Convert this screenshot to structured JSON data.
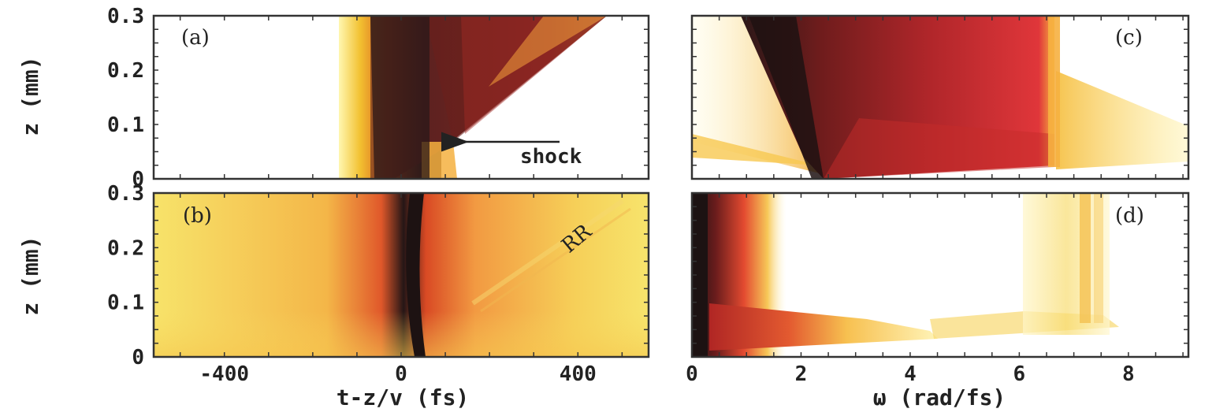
{
  "chart_data": [
    {
      "type": "heatmap",
      "panel": "(a)",
      "ylabel": "z (mm)",
      "xlabel": "",
      "xlim": [
        -560,
        560
      ],
      "ylim": [
        0,
        0.3
      ],
      "yticks": [
        "0",
        "0.1",
        "0.2",
        "0.3"
      ],
      "annotation": "shock",
      "annotation_point": {
        "x": 95,
        "z": 0.065
      }
    },
    {
      "type": "heatmap",
      "panel": "(b)",
      "ylabel": "z (mm)",
      "xlabel": "t-z/v (fs)",
      "xlim": [
        -560,
        560
      ],
      "ylim": [
        0,
        0.3
      ],
      "xticks": [
        "-400",
        "0",
        "400"
      ],
      "yticks": [
        "0",
        "0.1",
        "0.2",
        "0.3"
      ],
      "annotation": "RR"
    },
    {
      "type": "heatmap",
      "panel": "(c)",
      "xlabel": "",
      "xlim": [
        0,
        9.1
      ],
      "ylim": [
        0,
        0.3
      ]
    },
    {
      "type": "heatmap",
      "panel": "(d)",
      "xlabel": "ω (rad/fs)",
      "xlim": [
        0,
        9.1
      ],
      "ylim": [
        0,
        0.3
      ],
      "xticks": [
        "0",
        "2",
        "4",
        "6",
        "8"
      ]
    }
  ]
}
